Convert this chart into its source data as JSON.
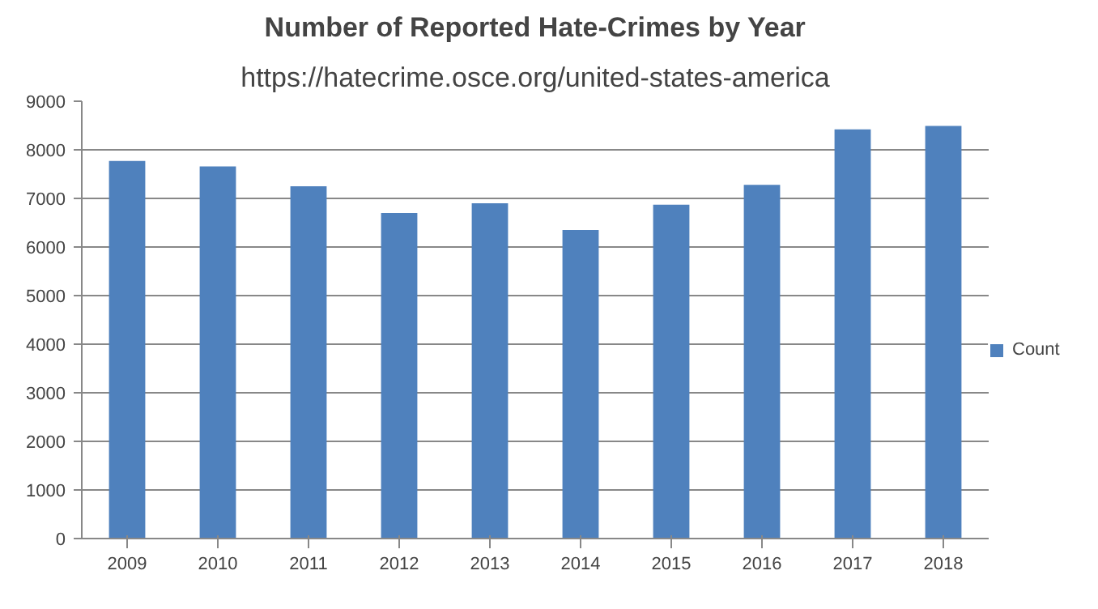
{
  "chart_data": {
    "type": "bar",
    "title": "Number of Reported Hate-Crimes by Year",
    "subtitle": "https://hatecrime.osce.org/united-states-america",
    "categories": [
      "2009",
      "2010",
      "2011",
      "2012",
      "2013",
      "2014",
      "2015",
      "2016",
      "2017",
      "2018"
    ],
    "series": [
      {
        "name": "Count",
        "color": "#4f81bd",
        "values": [
          7770,
          7660,
          7250,
          6700,
          6900,
          6350,
          6870,
          7280,
          8420,
          8490
        ]
      }
    ],
    "ylim": [
      0,
      9000
    ],
    "yticks": [
      0,
      1000,
      2000,
      3000,
      4000,
      5000,
      6000,
      7000,
      8000,
      9000
    ],
    "grid": "y",
    "legend": "right"
  }
}
